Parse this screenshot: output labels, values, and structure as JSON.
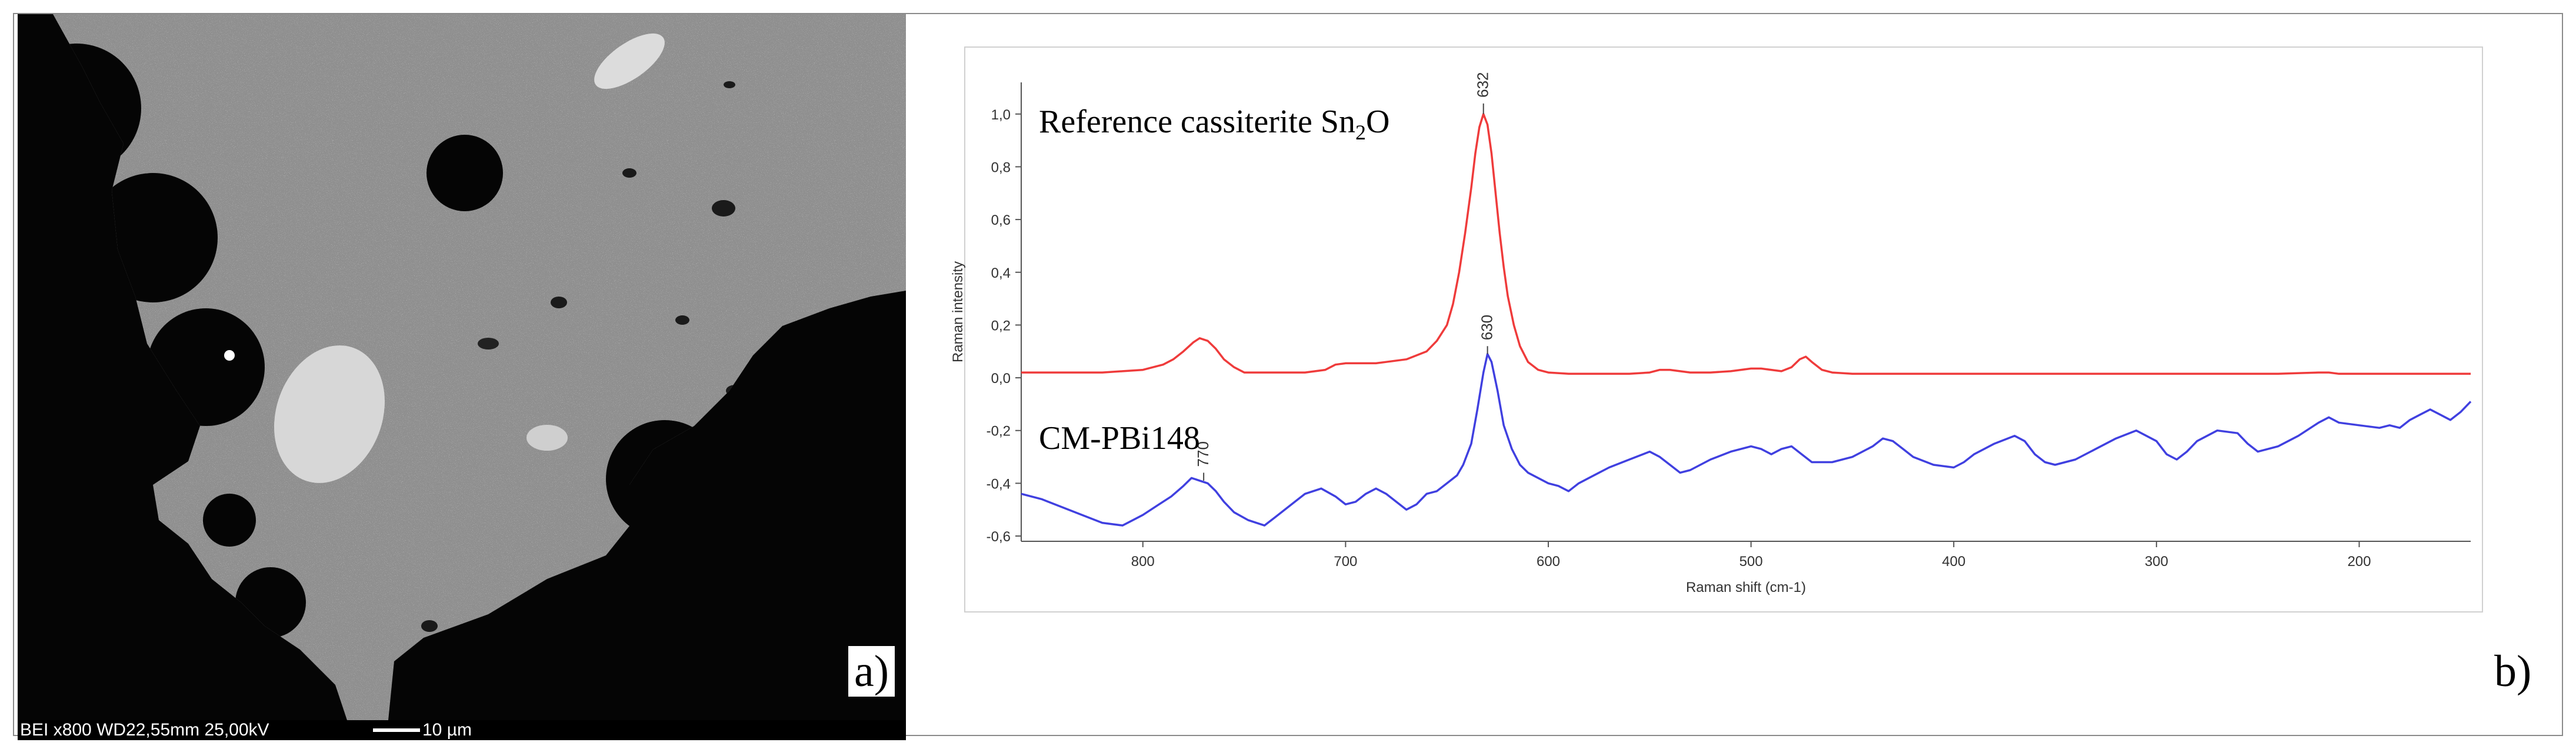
{
  "panel_a": {
    "label": "a)",
    "scale_info": "BEI  x800  WD22,55mm  25,00kV",
    "scale_bar_label": "10 µm"
  },
  "panel_b": {
    "label": "b)"
  },
  "chart_data": {
    "type": "line",
    "xlabel": "Raman shift (cm-1)",
    "ylabel": "Raman intensity",
    "xlim": [
      860,
      145
    ],
    "ylim": [
      -0.62,
      1.12
    ],
    "x_axis_reversed": true,
    "x_ticks": [
      800,
      700,
      600,
      500,
      400,
      300,
      200
    ],
    "y_ticks": [
      1.0,
      0.8,
      0.6,
      0.4,
      0.2,
      0.0,
      -0.2,
      -0.4,
      -0.6
    ],
    "y_tick_labels": [
      "1,0",
      "0,8",
      "0,6",
      "0,4",
      "0,2",
      "0,0",
      "-0,2",
      "-0,4",
      "-0,6"
    ],
    "grid": false,
    "series": [
      {
        "name": "Reference cassiterite Sn₂O",
        "color": "#ef3b3b",
        "x": [
          860,
          850,
          840,
          830,
          820,
          810,
          800,
          790,
          785,
          780,
          775,
          772,
          768,
          764,
          760,
          755,
          750,
          740,
          730,
          720,
          710,
          705,
          700,
          695,
          690,
          685,
          680,
          670,
          660,
          655,
          650,
          647,
          644,
          641,
          638,
          636,
          634,
          632,
          630,
          628,
          626,
          624,
          622,
          620,
          617,
          614,
          610,
          605,
          600,
          590,
          580,
          570,
          560,
          550,
          545,
          540,
          535,
          530,
          520,
          510,
          500,
          495,
          490,
          485,
          480,
          476,
          473,
          470,
          465,
          460,
          450,
          440,
          430,
          420,
          410,
          400,
          380,
          360,
          340,
          320,
          300,
          280,
          260,
          240,
          220,
          215,
          210,
          200,
          180,
          160,
          145
        ],
        "values": [
          0.02,
          0.02,
          0.02,
          0.02,
          0.02,
          0.025,
          0.03,
          0.05,
          0.07,
          0.1,
          0.135,
          0.15,
          0.14,
          0.11,
          0.07,
          0.04,
          0.02,
          0.02,
          0.02,
          0.02,
          0.03,
          0.05,
          0.055,
          0.055,
          0.055,
          0.055,
          0.06,
          0.07,
          0.1,
          0.14,
          0.2,
          0.28,
          0.4,
          0.55,
          0.72,
          0.85,
          0.95,
          1.0,
          0.96,
          0.85,
          0.7,
          0.55,
          0.42,
          0.31,
          0.2,
          0.12,
          0.06,
          0.03,
          0.02,
          0.015,
          0.015,
          0.015,
          0.015,
          0.02,
          0.03,
          0.03,
          0.025,
          0.02,
          0.02,
          0.025,
          0.035,
          0.035,
          0.03,
          0.025,
          0.04,
          0.07,
          0.08,
          0.06,
          0.03,
          0.02,
          0.015,
          0.015,
          0.015,
          0.015,
          0.015,
          0.015,
          0.015,
          0.015,
          0.015,
          0.015,
          0.015,
          0.015,
          0.015,
          0.015,
          0.02,
          0.02,
          0.015,
          0.015,
          0.015,
          0.015,
          0.015
        ]
      },
      {
        "name": "CM-PBi148",
        "color": "#4040e0",
        "x": [
          860,
          850,
          840,
          830,
          820,
          810,
          800,
          792,
          786,
          780,
          776,
          772,
          768,
          764,
          760,
          755,
          748,
          740,
          735,
          730,
          725,
          720,
          712,
          705,
          700,
          695,
          690,
          685,
          680,
          675,
          670,
          665,
          660,
          655,
          650,
          645,
          642,
          638,
          635,
          632,
          630,
          628,
          625,
          622,
          618,
          614,
          610,
          605,
          600,
          595,
          590,
          585,
          580,
          575,
          570,
          560,
          550,
          545,
          540,
          535,
          530,
          520,
          510,
          500,
          495,
          490,
          485,
          480,
          475,
          470,
          460,
          450,
          440,
          435,
          430,
          425,
          420,
          410,
          400,
          395,
          390,
          380,
          370,
          365,
          360,
          355,
          350,
          340,
          330,
          320,
          310,
          300,
          295,
          290,
          285,
          280,
          270,
          260,
          255,
          250,
          240,
          230,
          220,
          215,
          210,
          200,
          190,
          185,
          180,
          175,
          170,
          165,
          160,
          155,
          150,
          145
        ],
        "values": [
          -0.44,
          -0.46,
          -0.49,
          -0.52,
          -0.55,
          -0.56,
          -0.52,
          -0.48,
          -0.45,
          -0.41,
          -0.38,
          -0.39,
          -0.4,
          -0.43,
          -0.47,
          -0.51,
          -0.54,
          -0.56,
          -0.53,
          -0.5,
          -0.47,
          -0.44,
          -0.42,
          -0.45,
          -0.48,
          -0.47,
          -0.44,
          -0.42,
          -0.44,
          -0.47,
          -0.5,
          -0.48,
          -0.44,
          -0.43,
          -0.4,
          -0.37,
          -0.33,
          -0.25,
          -0.12,
          0.02,
          0.09,
          0.06,
          -0.05,
          -0.18,
          -0.27,
          -0.33,
          -0.36,
          -0.38,
          -0.4,
          -0.41,
          -0.43,
          -0.4,
          -0.38,
          -0.36,
          -0.34,
          -0.31,
          -0.28,
          -0.3,
          -0.33,
          -0.36,
          -0.35,
          -0.31,
          -0.28,
          -0.26,
          -0.27,
          -0.29,
          -0.27,
          -0.26,
          -0.29,
          -0.32,
          -0.32,
          -0.3,
          -0.26,
          -0.23,
          -0.24,
          -0.27,
          -0.3,
          -0.33,
          -0.34,
          -0.32,
          -0.29,
          -0.25,
          -0.22,
          -0.24,
          -0.29,
          -0.32,
          -0.33,
          -0.31,
          -0.27,
          -0.23,
          -0.2,
          -0.24,
          -0.29,
          -0.31,
          -0.28,
          -0.24,
          -0.2,
          -0.21,
          -0.25,
          -0.28,
          -0.26,
          -0.22,
          -0.17,
          -0.15,
          -0.17,
          -0.18,
          -0.19,
          -0.18,
          -0.19,
          -0.16,
          -0.14,
          -0.12,
          -0.14,
          -0.16,
          -0.13,
          -0.09
        ]
      }
    ],
    "annotations": [
      {
        "text": "Reference cassiterite Sn",
        "subscript": "2",
        "suffix": "O",
        "series": "Reference cassiterite Sn₂O",
        "at_x": 860,
        "at_y": 0.97
      },
      {
        "text": "CM-PBi148",
        "series": "CM-PBi148",
        "at_x": 860,
        "at_y": -0.23
      }
    ],
    "peak_labels": [
      {
        "text": "632",
        "x": 632,
        "y": 1.04,
        "series": "Reference cassiterite Sn₂O"
      },
      {
        "text": "630",
        "x": 630,
        "y": 0.12,
        "series": "CM-PBi148"
      },
      {
        "text": "770",
        "x": 770,
        "y": -0.36,
        "series": "CM-PBi148"
      }
    ]
  }
}
